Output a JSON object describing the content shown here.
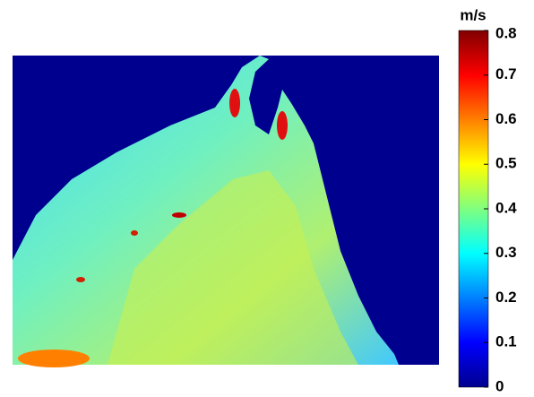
{
  "chart_data": {
    "type": "heatmap",
    "colorbar": {
      "label": "m/s",
      "clim": [
        0,
        0.8
      ],
      "ticks": [
        0,
        0.1,
        0.2,
        0.3,
        0.4,
        0.5,
        0.6,
        0.7,
        0.8
      ],
      "colormap": "jet"
    }
  }
}
